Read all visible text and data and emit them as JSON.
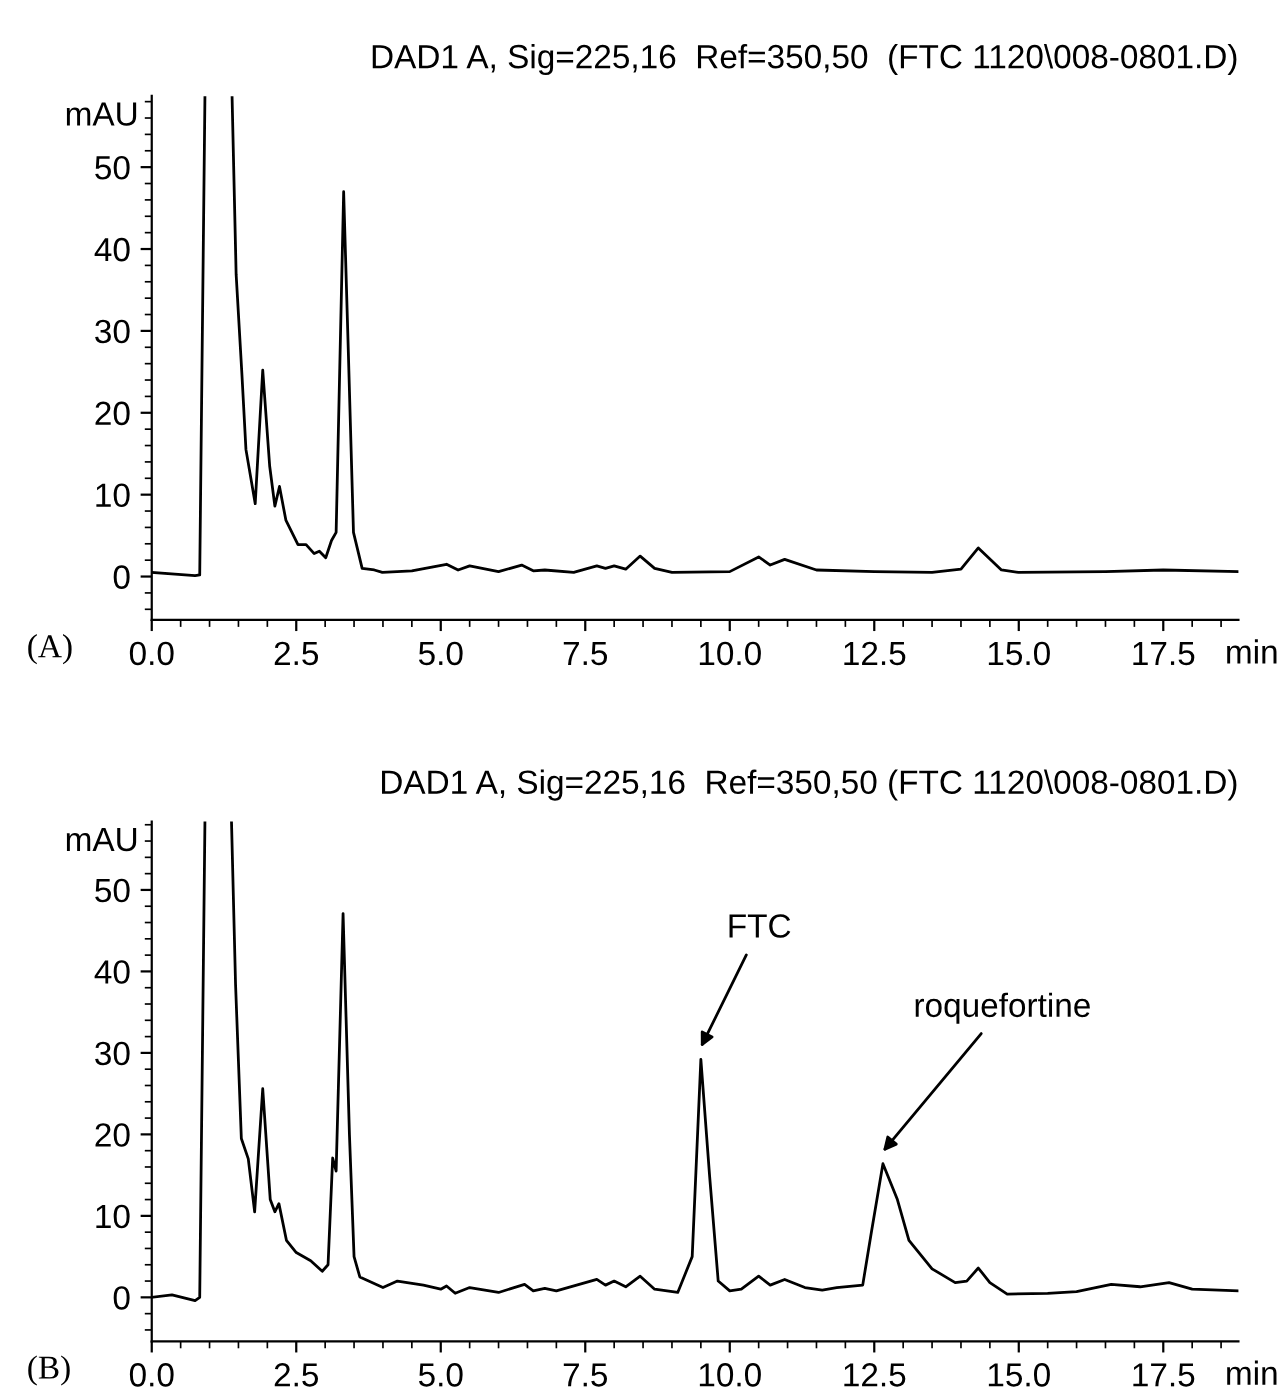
{
  "chart_data": [
    {
      "type": "line",
      "title": "DAD1 A, Sig=225,16  Ref=350,50  (FTC 1120\\008-0801.D)",
      "xlabel": "min",
      "ylabel": "mAU",
      "xlim": [
        0,
        18.8
      ],
      "ylim": [
        -5.3,
        58.7
      ],
      "xticks": [
        {
          "value": 0,
          "label": "0.0"
        },
        {
          "value": 2.5,
          "label": "2.5"
        },
        {
          "value": 5,
          "label": "5.0"
        },
        {
          "value": 7.5,
          "label": "7.5"
        },
        {
          "value": 10,
          "label": "10.0"
        },
        {
          "value": 12.5,
          "label": "12.5"
        },
        {
          "value": 15,
          "label": "15.0"
        },
        {
          "value": 17.5,
          "label": "17.5"
        }
      ],
      "yticks": [
        0,
        10,
        20,
        30,
        40,
        50
      ],
      "grid": false,
      "legend": false,
      "marker": "none",
      "line_style": "solid",
      "series": [
        {
          "color": "#000000",
          "x": [
            0,
            0.4,
            0.75,
            0.83,
            0.92,
            0.93,
            1.39,
            1.46,
            1.56,
            1.63,
            1.79,
            1.92,
            2.04,
            2.13,
            2.21,
            2.32,
            2.53,
            2.67,
            2.81,
            2.9,
            3.01,
            3.11,
            3.19,
            3.32,
            3.4,
            3.49,
            3.64,
            3.85,
            3.99,
            4.5,
            5.1,
            5.3,
            5.5,
            6.0,
            6.4,
            6.6,
            6.8,
            7.3,
            7.7,
            7.85,
            8.0,
            8.2,
            8.45,
            8.7,
            9.0,
            10.0,
            10.5,
            10.7,
            10.95,
            11.5,
            12.5,
            13.5,
            14.0,
            14.3,
            14.7,
            15.0,
            16.5,
            17.5,
            18.8
          ],
          "values": [
            0.5,
            0.3,
            0.1,
            0.2,
            58.5,
            null,
            58.5,
            36.9,
            24.7,
            15.5,
            8.9,
            25.2,
            13.5,
            8.6,
            11,
            6.9,
            3.9,
            3.9,
            2.8,
            3.1,
            2.3,
            4.4,
            5.4,
            47,
            27.7,
            5.4,
            1.0,
            0.8,
            0.5,
            0.7,
            1.5,
            0.8,
            1.3,
            0.6,
            1.4,
            0.7,
            0.8,
            0.5,
            1.3,
            1.0,
            1.3,
            0.9,
            2.5,
            1.0,
            0.5,
            0.6,
            2.4,
            1.4,
            2.1,
            0.8,
            0.6,
            0.5,
            0.9,
            3.5,
            0.8,
            0.5,
            0.6,
            0.8,
            0.6
          ]
        }
      ],
      "annotations": [
        "(A)"
      ]
    },
    {
      "type": "line",
      "title": "DAD1 A, Sig=225,16  Ref=350,50 (FTC 1120\\008-0801.D)",
      "xlabel": "min",
      "ylabel": "mAU",
      "xlim": [
        0,
        18.8
      ],
      "ylim": [
        -5.4,
        58.4
      ],
      "xticks": [
        {
          "value": 0,
          "label": "0.0"
        },
        {
          "value": 2.5,
          "label": "2.5"
        },
        {
          "value": 5,
          "label": "5.0"
        },
        {
          "value": 7.5,
          "label": "7.5"
        },
        {
          "value": 10,
          "label": "10.0"
        },
        {
          "value": 12.5,
          "label": "12.5"
        },
        {
          "value": 15,
          "label": "15.0"
        },
        {
          "value": 17.5,
          "label": "17.5"
        }
      ],
      "yticks": [
        0,
        10,
        20,
        30,
        40,
        50
      ],
      "grid": false,
      "legend": false,
      "marker": "none",
      "line_style": "solid",
      "series": [
        {
          "color": "#000000",
          "x": [
            0,
            0.35,
            0.75,
            0.83,
            0.92,
            0.93,
            1.38,
            1.45,
            1.55,
            1.67,
            1.78,
            1.92,
            2.05,
            2.13,
            2.2,
            2.33,
            2.5,
            2.75,
            2.95,
            3.05,
            3.13,
            3.19,
            3.31,
            3.42,
            3.5,
            3.6,
            4.0,
            4.25,
            4.7,
            5.0,
            5.1,
            5.25,
            5.5,
            6.0,
            6.45,
            6.6,
            6.8,
            7.0,
            7.7,
            7.85,
            8.0,
            8.2,
            8.45,
            8.7,
            9.1,
            9.35,
            9.5,
            9.65,
            9.8,
            10.0,
            10.2,
            10.5,
            10.7,
            10.95,
            11.3,
            11.6,
            11.85,
            12.3,
            12.45,
            12.65,
            12.9,
            13.1,
            13.5,
            13.9,
            14.1,
            14.3,
            14.5,
            14.8,
            15.5,
            16.0,
            16.6,
            17.1,
            17.6,
            18.0,
            18.8
          ],
          "values": [
            0,
            0.3,
            -0.4,
            0,
            58.3,
            null,
            58.3,
            38.4,
            19.5,
            17,
            10.5,
            25.6,
            12,
            10.5,
            11.5,
            7,
            5.5,
            4.5,
            3.2,
            4,
            17.1,
            15.5,
            47.1,
            20,
            5,
            2.5,
            1.2,
            2.0,
            1.5,
            1.0,
            1.4,
            0.5,
            1.2,
            0.6,
            1.6,
            0.8,
            1.1,
            0.8,
            2.2,
            1.5,
            2.0,
            1.3,
            2.6,
            1.0,
            0.6,
            5,
            29.2,
            15,
            2,
            0.8,
            1.0,
            2.6,
            1.5,
            2.2,
            1.2,
            0.9,
            1.2,
            1.5,
            8,
            16.4,
            12,
            7,
            3.5,
            1.8,
            2,
            3.6,
            1.8,
            0.4,
            0.5,
            0.7,
            1.6,
            1.3,
            1.8,
            1.0,
            0.8
          ]
        }
      ],
      "annotations": [
        "(B)",
        {
          "text": "FTC",
          "x": 9.5,
          "y": 29.2
        },
        {
          "text": "roquefortine",
          "x": 12.65,
          "y": 16.4
        }
      ]
    }
  ]
}
